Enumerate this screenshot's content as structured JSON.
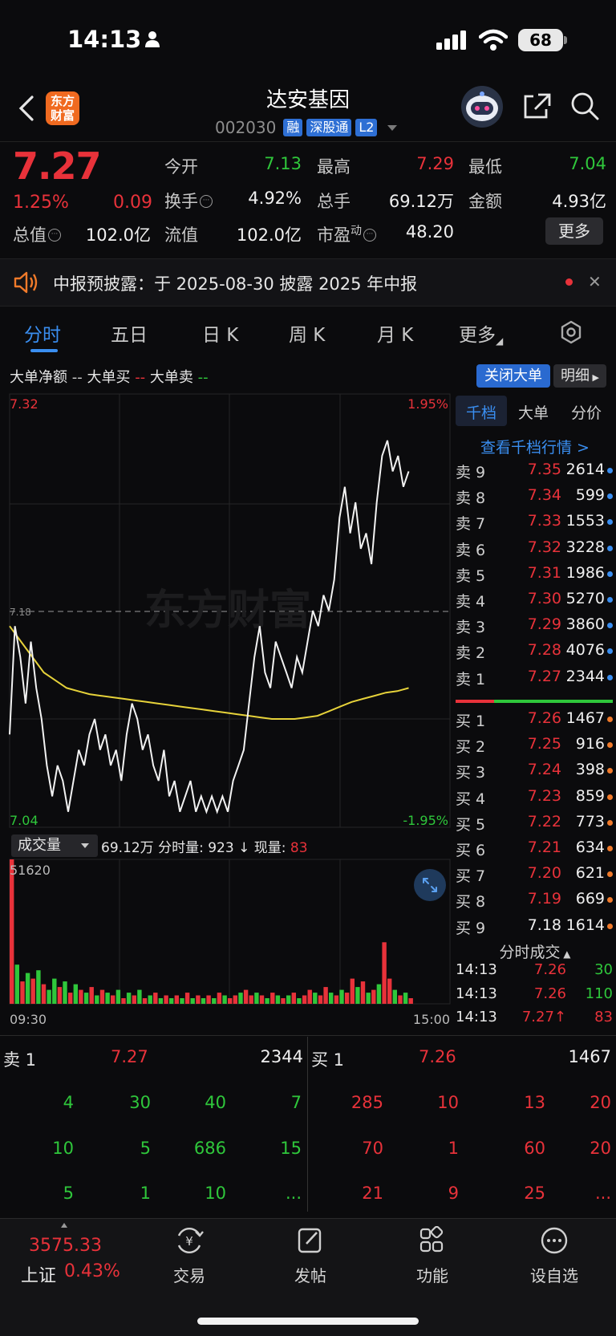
{
  "status": {
    "time": "14:13",
    "battery": "68"
  },
  "header": {
    "logo_line1": "东方",
    "logo_line2": "财富",
    "name": "达安基因",
    "code": "002030",
    "tags": [
      "融",
      "深股通",
      "L2"
    ]
  },
  "quote": {
    "price": "7.27",
    "change_pct": "1.25%",
    "change_amt": "0.09",
    "open_label": "今开",
    "open": "7.13",
    "high_label": "最高",
    "high": "7.29",
    "low_label": "最低",
    "low": "7.04",
    "turnover_label": "换手",
    "turnover": "4.92%",
    "volume_label": "总手",
    "volume": "69.12万",
    "amount_label": "金额",
    "amount": "4.93亿",
    "cap_label": "总值",
    "cap": "102.0亿",
    "float_label": "流值",
    "float_cap": "102.0亿",
    "pe_label": "市盈",
    "pe_sup": "动",
    "pe": "48.20",
    "more": "更多"
  },
  "notice": {
    "text": "中报预披露：于 2025-08-30 披露 2025 年中报"
  },
  "tabs": [
    "分时",
    "五日",
    "日 K",
    "周 K",
    "月 K",
    "更多"
  ],
  "bigorder": {
    "label1": "大单净额",
    "label2": "大单买",
    "label3": "大单卖",
    "close_btn": "关闭大单",
    "detail_btn": "明细"
  },
  "chart": {
    "price_top": "7.32",
    "price_bottom": "7.04",
    "pct_top": "1.95%",
    "pct_bottom": "-1.95%",
    "ref_label": "7.18",
    "watermark": "东方财富",
    "vol_max": "51620",
    "time_start": "09:30",
    "time_end": "15:00",
    "vol_selector": "成交量",
    "vol_total": "69.12万",
    "vol_minute_label": "分时量:",
    "vol_minute": "923",
    "vol_now_label": "现量:",
    "vol_now": "83"
  },
  "chart_data": {
    "type": "line",
    "ylim": [
      7.04,
      7.32
    ],
    "reference": 7.18,
    "price_series": [
      7.1,
      7.17,
      7.15,
      7.12,
      7.16,
      7.13,
      7.11,
      7.08,
      7.06,
      7.08,
      7.07,
      7.05,
      7.07,
      7.09,
      7.08,
      7.1,
      7.11,
      7.09,
      7.1,
      7.08,
      7.09,
      7.07,
      7.1,
      7.12,
      7.11,
      7.09,
      7.1,
      7.08,
      7.07,
      7.09,
      7.06,
      7.07,
      7.05,
      7.06,
      7.07,
      7.05,
      7.06,
      7.05,
      7.06,
      7.05,
      7.06,
      7.05,
      7.07,
      7.08,
      7.09,
      7.12,
      7.15,
      7.17,
      7.14,
      7.13,
      7.16,
      7.15,
      7.14,
      7.13,
      7.15,
      7.14,
      7.16,
      7.18,
      7.17,
      7.19,
      7.18,
      7.2,
      7.24,
      7.26,
      7.23,
      7.25,
      7.22,
      7.23,
      7.21,
      7.25,
      7.28,
      7.29,
      7.27,
      7.28,
      7.26,
      7.27
    ],
    "avg_series": [
      7.17,
      7.16,
      7.15,
      7.14,
      7.135,
      7.13,
      7.128,
      7.126,
      7.125,
      7.124,
      7.123,
      7.122,
      7.121,
      7.12,
      7.119,
      7.118,
      7.117,
      7.116,
      7.115,
      7.114,
      7.113,
      7.112,
      7.111,
      7.11,
      7.11,
      7.11,
      7.111,
      7.112,
      7.115,
      7.118,
      7.121,
      7.123,
      7.125,
      7.127,
      7.128,
      7.13
    ],
    "volume": [
      51620,
      14000,
      8000,
      11000,
      9000,
      12000,
      7000,
      5000,
      9000,
      6000,
      8000,
      4000,
      7000,
      5000,
      4000,
      6000,
      3000,
      5000,
      4000,
      3000,
      5000,
      2000,
      4000,
      3000,
      5000,
      2000,
      3000,
      4000,
      2000,
      3000,
      2000,
      3000,
      2000,
      4000,
      2000,
      3000,
      2000,
      3000,
      2000,
      4000,
      3000,
      2000,
      3000,
      4000,
      5000,
      3000,
      4000,
      3000,
      2000,
      4000,
      3000,
      2000,
      3000,
      4000,
      2000,
      3000,
      5000,
      4000,
      3000,
      6000,
      4000,
      3000,
      5000,
      4000,
      9000,
      6000,
      8000,
      4000,
      5000,
      7000,
      22000,
      9000,
      5000,
      3000,
      4000,
      2000
    ],
    "volume_colors": [
      "r",
      "g",
      "r",
      "g",
      "r",
      "g",
      "r",
      "g",
      "g",
      "r",
      "g",
      "r",
      "g",
      "r",
      "g",
      "r",
      "g",
      "r",
      "g",
      "r",
      "g",
      "r",
      "g",
      "r",
      "g",
      "r",
      "g",
      "r",
      "g",
      "r",
      "g",
      "r",
      "g",
      "r",
      "g",
      "r",
      "g",
      "r",
      "g",
      "r",
      "g",
      "r",
      "r",
      "g",
      "r",
      "r",
      "g",
      "r",
      "g",
      "r",
      "g",
      "r",
      "g",
      "r",
      "g",
      "r",
      "r",
      "g",
      "r",
      "r",
      "g",
      "r",
      "g",
      "r",
      "r",
      "g",
      "r",
      "g",
      "r",
      "g",
      "r",
      "r",
      "g",
      "r",
      "g",
      "r"
    ]
  },
  "right_panel": {
    "tabs": [
      "千档",
      "大单",
      "分价"
    ],
    "depth_link": "查看千档行情 >",
    "asks": [
      {
        "label": "卖 9",
        "price": "7.35",
        "vol": "2614"
      },
      {
        "label": "卖 8",
        "price": "7.34",
        "vol": "599"
      },
      {
        "label": "卖 7",
        "price": "7.33",
        "vol": "1553"
      },
      {
        "label": "卖 6",
        "price": "7.32",
        "vol": "3228"
      },
      {
        "label": "卖 5",
        "price": "7.31",
        "vol": "1986"
      },
      {
        "label": "卖 4",
        "price": "7.30",
        "vol": "5270"
      },
      {
        "label": "卖 3",
        "price": "7.29",
        "vol": "3860"
      },
      {
        "label": "卖 2",
        "price": "7.28",
        "vol": "4076"
      },
      {
        "label": "卖 1",
        "price": "7.27",
        "vol": "2344"
      }
    ],
    "bids": [
      {
        "label": "买 1",
        "price": "7.26",
        "vol": "1467"
      },
      {
        "label": "买 2",
        "price": "7.25",
        "vol": "916"
      },
      {
        "label": "买 3",
        "price": "7.24",
        "vol": "398"
      },
      {
        "label": "买 4",
        "price": "7.23",
        "vol": "859"
      },
      {
        "label": "买 5",
        "price": "7.22",
        "vol": "773"
      },
      {
        "label": "买 6",
        "price": "7.21",
        "vol": "634"
      },
      {
        "label": "买 7",
        "price": "7.20",
        "vol": "621"
      },
      {
        "label": "买 8",
        "price": "7.19",
        "vol": "669"
      },
      {
        "label": "买 9",
        "price": "7.18",
        "vol": "1614"
      }
    ],
    "ticks_title": "分时成交",
    "ticks": [
      {
        "time": "14:13",
        "price": "7.26",
        "vol": "30"
      },
      {
        "time": "14:13",
        "price": "7.26",
        "vol": "110"
      },
      {
        "time": "14:13",
        "price": "7.27↑",
        "vol": "83"
      }
    ]
  },
  "level1": {
    "sell_label": "卖 1",
    "sell_price": "7.27",
    "sell_vol": "2344",
    "buy_label": "买 1",
    "buy_price": "7.26",
    "buy_vol": "1467",
    "sell_queue": [
      [
        "4",
        "30",
        "40",
        "7"
      ],
      [
        "10",
        "5",
        "686",
        "15"
      ],
      [
        "5",
        "1",
        "10",
        "..."
      ]
    ],
    "buy_queue": [
      [
        "285",
        "10",
        "13",
        "20"
      ],
      [
        "70",
        "1",
        "60",
        "20"
      ],
      [
        "21",
        "9",
        "25",
        "..."
      ]
    ]
  },
  "tabbar": {
    "index_value": "3575.33",
    "index_name": "上证",
    "index_pct": "0.43%",
    "items": [
      "交易",
      "发帖",
      "功能",
      "设自选"
    ]
  },
  "colors": {
    "up": "#e8323a",
    "down": "#2fc73b",
    "accent": "#3a8ef0",
    "avg_line": "#e6d23a"
  }
}
